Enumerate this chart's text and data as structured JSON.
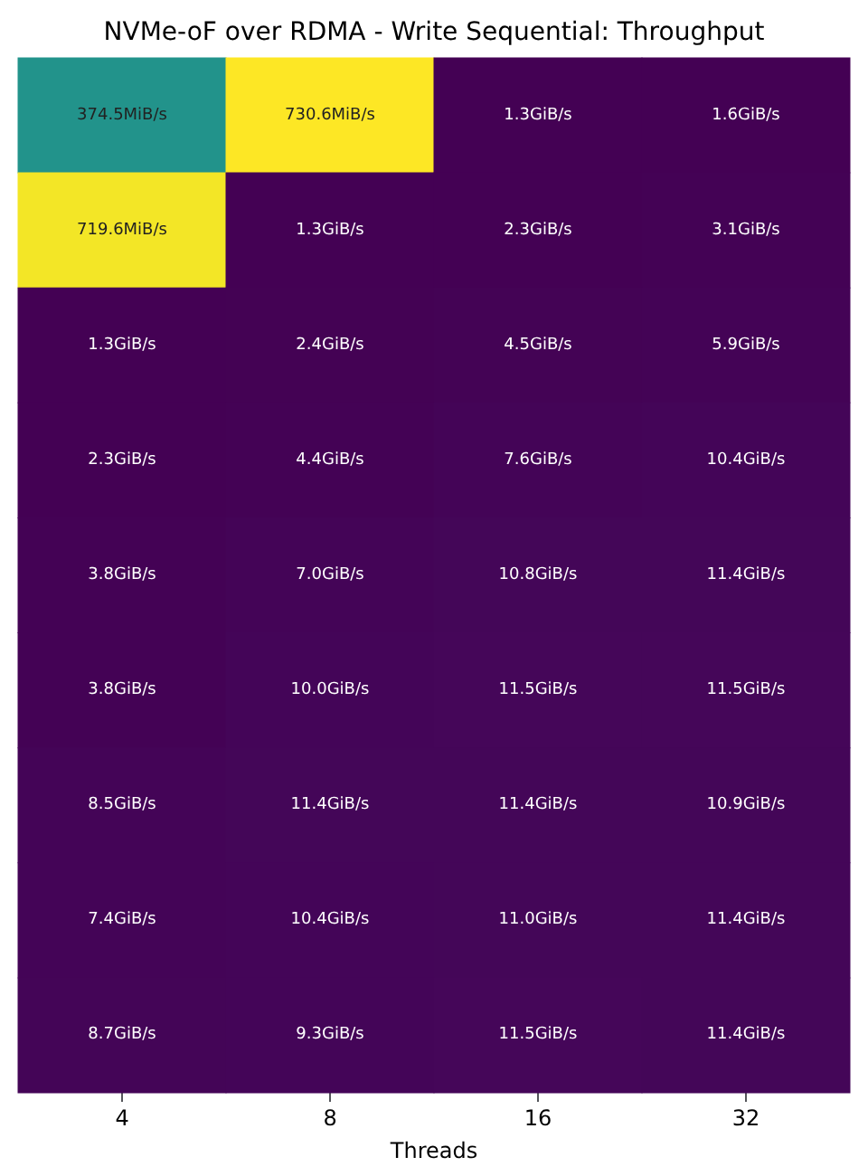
{
  "chart_data": {
    "type": "heatmap",
    "title": "NVMe-oF over RDMA - Write Sequential: Throughput",
    "xlabel": "Threads",
    "categories": [
      "4",
      "8",
      "16",
      "32"
    ],
    "y_categories": [
      null,
      null,
      null,
      null,
      null,
      null,
      null,
      null,
      null
    ],
    "cells": [
      [
        374.5,
        730.6,
        1.3,
        1.6
      ],
      [
        719.6,
        1.3,
        2.3,
        3.1
      ],
      [
        1.3,
        2.4,
        4.5,
        5.9
      ],
      [
        2.3,
        4.4,
        7.6,
        10.4
      ],
      [
        3.8,
        7.0,
        10.8,
        11.4
      ],
      [
        3.8,
        10.0,
        11.5,
        11.5
      ],
      [
        8.5,
        11.4,
        11.4,
        10.9
      ],
      [
        7.4,
        10.4,
        11.0,
        11.4
      ],
      [
        8.7,
        9.3,
        11.5,
        11.4
      ]
    ],
    "cell_labels": [
      [
        "374.5MiB/s",
        "730.6MiB/s",
        "1.3GiB/s",
        "1.6GiB/s"
      ],
      [
        "719.6MiB/s",
        "1.3GiB/s",
        "2.3GiB/s",
        "3.1GiB/s"
      ],
      [
        "1.3GiB/s",
        "2.4GiB/s",
        "4.5GiB/s",
        "5.9GiB/s"
      ],
      [
        "2.3GiB/s",
        "4.4GiB/s",
        "7.6GiB/s",
        "10.4GiB/s"
      ],
      [
        "3.8GiB/s",
        "7.0GiB/s",
        "10.8GiB/s",
        "11.4GiB/s"
      ],
      [
        "3.8GiB/s",
        "10.0GiB/s",
        "11.5GiB/s",
        "11.5GiB/s"
      ],
      [
        "8.5GiB/s",
        "11.4GiB/s",
        "11.4GiB/s",
        "10.9GiB/s"
      ],
      [
        "7.4GiB/s",
        "10.4GiB/s",
        "11.0GiB/s",
        "11.4GiB/s"
      ],
      [
        "8.7GiB/s",
        "9.3GiB/s",
        "11.5GiB/s",
        "11.4GiB/s"
      ]
    ]
  }
}
